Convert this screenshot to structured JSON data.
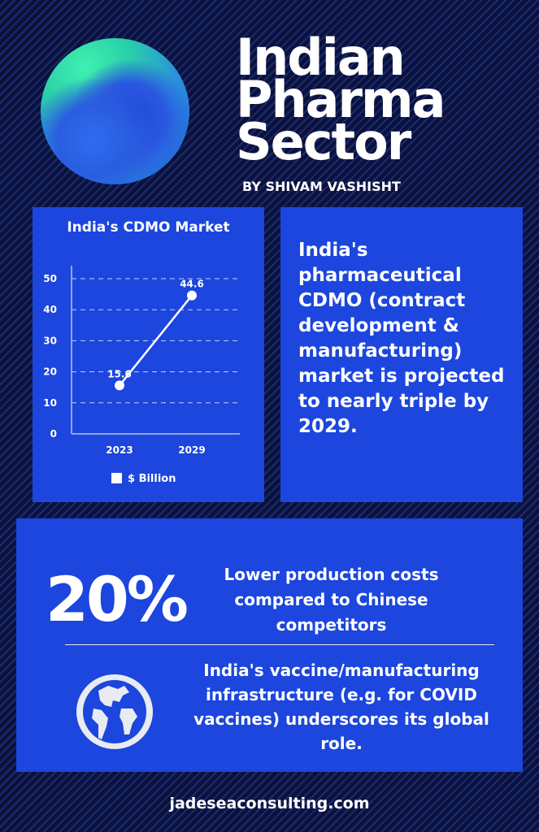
{
  "header": {
    "title_lines": [
      "Indian",
      "Pharma",
      "Sector"
    ],
    "byline": "BY SHIVAM VASHISHT"
  },
  "chart_data": {
    "type": "line",
    "title": "India's CDMO Market",
    "categories": [
      "2023",
      "2029"
    ],
    "series": [
      {
        "name": "$ Billion",
        "values": [
          15.6,
          44.6
        ]
      }
    ],
    "data_labels": [
      "15.6",
      "44.6"
    ],
    "ylim": [
      0,
      50
    ],
    "yticks": [
      "0",
      "10",
      "20",
      "30",
      "40",
      "50"
    ],
    "grid": true,
    "legend": "bottom",
    "colors": {
      "line": "#ffffff",
      "panel": "#1c46dd"
    }
  },
  "summary": "India's pharmaceutical CDMO (contract development & manufacturing) market is projected to nearly triple by 2029.",
  "stats": {
    "big_value": "20%",
    "cost_text": "Lower production costs compared to Chinese competitors",
    "icon": "globe-icon",
    "vaccine_text": "India's vaccine/manufacturing infrastructure (e.g. for COVID vaccines) underscores its global role."
  },
  "footer": "jadeseaconsulting.com"
}
